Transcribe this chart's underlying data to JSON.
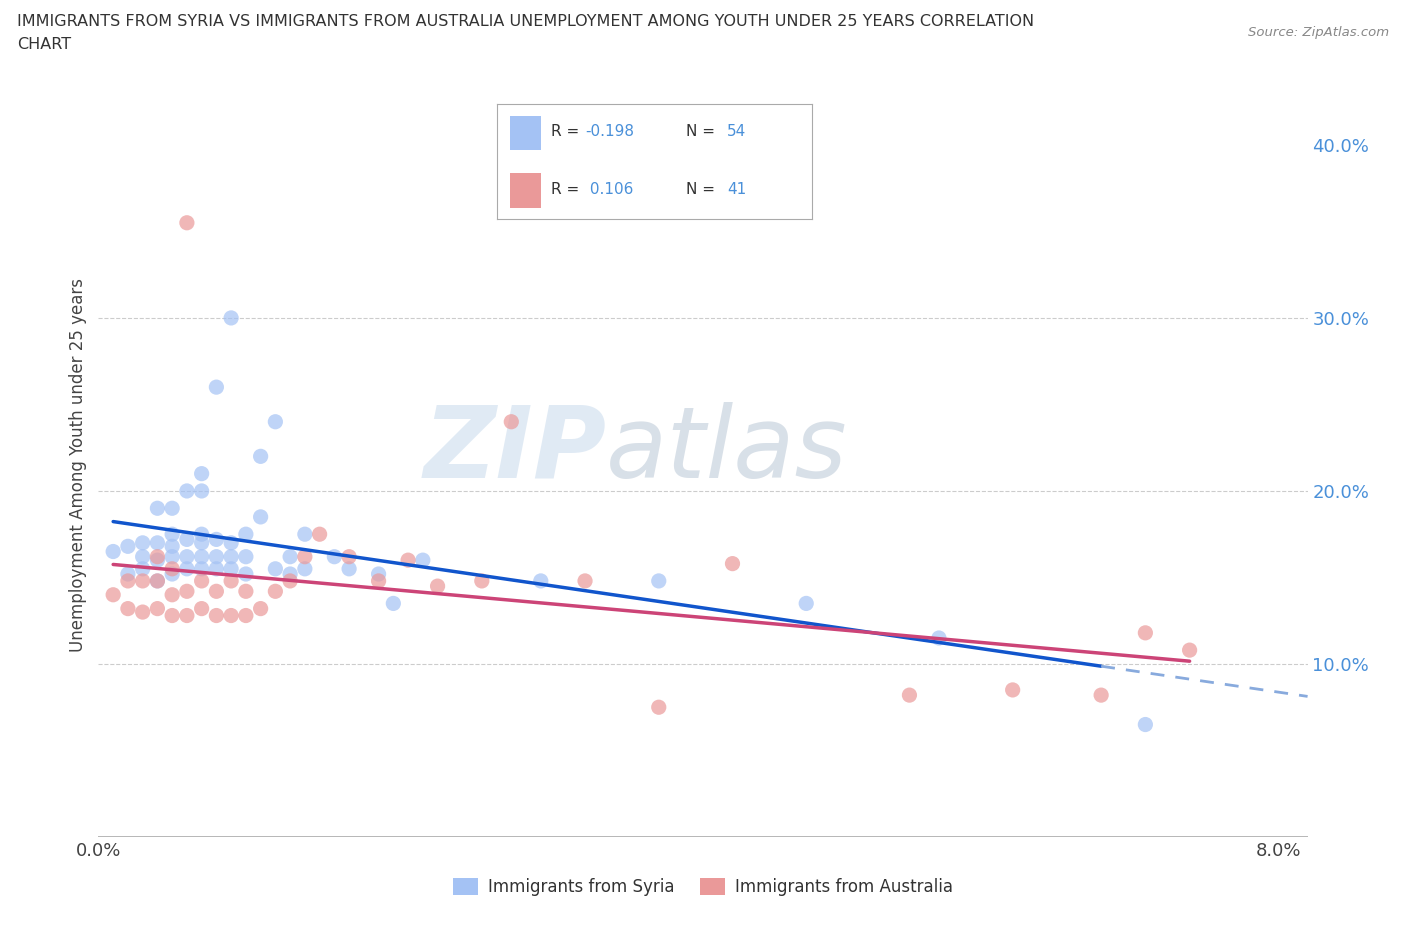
{
  "title_line1": "IMMIGRANTS FROM SYRIA VS IMMIGRANTS FROM AUSTRALIA UNEMPLOYMENT AMONG YOUTH UNDER 25 YEARS CORRELATION",
  "title_line2": "CHART",
  "source_text": "Source: ZipAtlas.com",
  "ylabel": "Unemployment Among Youth under 25 years",
  "xlim": [
    0.0,
    0.082
  ],
  "ylim": [
    0.0,
    0.43
  ],
  "syria_color": "#a4c2f4",
  "australia_color": "#ea9999",
  "syria_line_color": "#1155cc",
  "australia_line_color": "#cc4477",
  "syria_line_dash_color": "#88aadd",
  "R_syria": -0.198,
  "N_syria": 54,
  "R_australia": 0.106,
  "N_australia": 41,
  "legend_label_syria": "Immigrants from Syria",
  "legend_label_australia": "Immigrants from Australia",
  "watermark_zip": "ZIP",
  "watermark_atlas": "atlas",
  "background_color": "#ffffff",
  "grid_color": "#cccccc",
  "syria_x": [
    0.001,
    0.002,
    0.002,
    0.003,
    0.003,
    0.003,
    0.004,
    0.004,
    0.004,
    0.004,
    0.005,
    0.005,
    0.005,
    0.005,
    0.005,
    0.006,
    0.006,
    0.006,
    0.006,
    0.007,
    0.007,
    0.007,
    0.007,
    0.007,
    0.007,
    0.008,
    0.008,
    0.008,
    0.008,
    0.009,
    0.009,
    0.009,
    0.009,
    0.01,
    0.01,
    0.01,
    0.011,
    0.011,
    0.012,
    0.012,
    0.013,
    0.013,
    0.014,
    0.014,
    0.016,
    0.017,
    0.019,
    0.02,
    0.022,
    0.03,
    0.038,
    0.048,
    0.057,
    0.071
  ],
  "syria_y": [
    0.165,
    0.152,
    0.168,
    0.155,
    0.162,
    0.17,
    0.148,
    0.16,
    0.17,
    0.19,
    0.152,
    0.162,
    0.168,
    0.175,
    0.19,
    0.155,
    0.162,
    0.172,
    0.2,
    0.155,
    0.162,
    0.17,
    0.175,
    0.2,
    0.21,
    0.155,
    0.162,
    0.172,
    0.26,
    0.155,
    0.162,
    0.17,
    0.3,
    0.152,
    0.162,
    0.175,
    0.185,
    0.22,
    0.155,
    0.24,
    0.152,
    0.162,
    0.155,
    0.175,
    0.162,
    0.155,
    0.152,
    0.135,
    0.16,
    0.148,
    0.148,
    0.135,
    0.115,
    0.065
  ],
  "australia_x": [
    0.001,
    0.002,
    0.002,
    0.003,
    0.003,
    0.004,
    0.004,
    0.004,
    0.005,
    0.005,
    0.005,
    0.006,
    0.006,
    0.006,
    0.007,
    0.007,
    0.008,
    0.008,
    0.009,
    0.009,
    0.01,
    0.01,
    0.011,
    0.012,
    0.013,
    0.014,
    0.015,
    0.017,
    0.019,
    0.021,
    0.023,
    0.026,
    0.028,
    0.033,
    0.038,
    0.043,
    0.055,
    0.062,
    0.068,
    0.071,
    0.074
  ],
  "australia_y": [
    0.14,
    0.132,
    0.148,
    0.13,
    0.148,
    0.132,
    0.148,
    0.162,
    0.128,
    0.14,
    0.155,
    0.128,
    0.142,
    0.355,
    0.132,
    0.148,
    0.128,
    0.142,
    0.128,
    0.148,
    0.128,
    0.142,
    0.132,
    0.142,
    0.148,
    0.162,
    0.175,
    0.162,
    0.148,
    0.16,
    0.145,
    0.148,
    0.24,
    0.148,
    0.075,
    0.158,
    0.082,
    0.085,
    0.082,
    0.118,
    0.108
  ]
}
